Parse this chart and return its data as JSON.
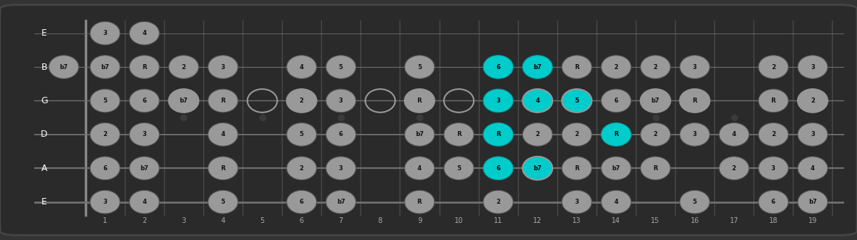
{
  "bg_color": "#333333",
  "fretboard_color": "#1c1c1c",
  "fret_color": "#4a4a4a",
  "string_color": "#707070",
  "dot_color_normal": "#999999",
  "dot_color_highlight": "#00cccc",
  "text_color_normal": "#111111",
  "text_color_highlight": "#000000",
  "string_label_color": "#ffffff",
  "fret_label_color": "#aaaaaa",
  "strings": [
    "E",
    "B",
    "G",
    "D",
    "A",
    "E"
  ],
  "string_y": [
    5,
    4,
    3,
    2,
    1,
    0
  ],
  "num_frets": 19,
  "notes": [
    {
      "fret": 1,
      "str": 5,
      "label": "3",
      "hl": false
    },
    {
      "fret": 2,
      "str": 5,
      "label": "4",
      "hl": false
    },
    {
      "fret": 1,
      "str": 4,
      "label": "b7",
      "hl": false
    },
    {
      "fret": 2,
      "str": 4,
      "label": "R",
      "hl": false
    },
    {
      "fret": 3,
      "str": 4,
      "label": "2",
      "hl": false
    },
    {
      "fret": 4,
      "str": 4,
      "label": "3",
      "hl": false
    },
    {
      "fret": 6,
      "str": 4,
      "label": "4",
      "hl": false
    },
    {
      "fret": 7,
      "str": 4,
      "label": "5",
      "hl": false
    },
    {
      "fret": 9,
      "str": 4,
      "label": "5",
      "hl": false
    },
    {
      "fret": 11,
      "str": 4,
      "label": "6",
      "hl": true
    },
    {
      "fret": 12,
      "str": 4,
      "label": "b7",
      "hl": true
    },
    {
      "fret": 13,
      "str": 4,
      "label": "R",
      "hl": false
    },
    {
      "fret": 14,
      "str": 4,
      "label": "2",
      "hl": false
    },
    {
      "fret": 15,
      "str": 4,
      "label": "2",
      "hl": false
    },
    {
      "fret": 16,
      "str": 4,
      "label": "3",
      "hl": false
    },
    {
      "fret": 18,
      "str": 4,
      "label": "2",
      "hl": false
    },
    {
      "fret": 19,
      "str": 4,
      "label": "3",
      "hl": false
    },
    {
      "fret": 1,
      "str": 3,
      "label": "5",
      "hl": false
    },
    {
      "fret": 2,
      "str": 3,
      "label": "6",
      "hl": false
    },
    {
      "fret": 3,
      "str": 3,
      "label": "b7",
      "hl": false
    },
    {
      "fret": 4,
      "str": 3,
      "label": "R",
      "hl": false
    },
    {
      "fret": 6,
      "str": 3,
      "label": "2",
      "hl": false
    },
    {
      "fret": 7,
      "str": 3,
      "label": "3",
      "hl": false
    },
    {
      "fret": 9,
      "str": 3,
      "label": "R",
      "hl": false
    },
    {
      "fret": 11,
      "str": 3,
      "label": "3",
      "hl": true
    },
    {
      "fret": 12,
      "str": 3,
      "label": "4",
      "hl": true
    },
    {
      "fret": 13,
      "str": 3,
      "label": "5",
      "hl": true
    },
    {
      "fret": 14,
      "str": 3,
      "label": "6",
      "hl": false
    },
    {
      "fret": 15,
      "str": 3,
      "label": "b7",
      "hl": false
    },
    {
      "fret": 16,
      "str": 3,
      "label": "R",
      "hl": false
    },
    {
      "fret": 18,
      "str": 3,
      "label": "R",
      "hl": false
    },
    {
      "fret": 19,
      "str": 3,
      "label": "2",
      "hl": false
    },
    {
      "fret": 1,
      "str": 2,
      "label": "2",
      "hl": false
    },
    {
      "fret": 2,
      "str": 2,
      "label": "3",
      "hl": false
    },
    {
      "fret": 4,
      "str": 2,
      "label": "4",
      "hl": false
    },
    {
      "fret": 6,
      "str": 2,
      "label": "5",
      "hl": false
    },
    {
      "fret": 7,
      "str": 2,
      "label": "6",
      "hl": false
    },
    {
      "fret": 9,
      "str": 2,
      "label": "b7",
      "hl": false
    },
    {
      "fret": 10,
      "str": 2,
      "label": "R",
      "hl": false
    },
    {
      "fret": 11,
      "str": 2,
      "label": "R",
      "hl": true
    },
    {
      "fret": 12,
      "str": 2,
      "label": "2",
      "hl": false
    },
    {
      "fret": 13,
      "str": 2,
      "label": "2",
      "hl": false
    },
    {
      "fret": 14,
      "str": 2,
      "label": "R",
      "hl": true
    },
    {
      "fret": 15,
      "str": 2,
      "label": "2",
      "hl": false
    },
    {
      "fret": 16,
      "str": 2,
      "label": "3",
      "hl": false
    },
    {
      "fret": 17,
      "str": 2,
      "label": "4",
      "hl": false
    },
    {
      "fret": 18,
      "str": 2,
      "label": "2",
      "hl": false
    },
    {
      "fret": 19,
      "str": 2,
      "label": "3",
      "hl": false
    },
    {
      "fret": 1,
      "str": 1,
      "label": "6",
      "hl": false
    },
    {
      "fret": 2,
      "str": 1,
      "label": "b7",
      "hl": false
    },
    {
      "fret": 4,
      "str": 1,
      "label": "R",
      "hl": false
    },
    {
      "fret": 6,
      "str": 1,
      "label": "2",
      "hl": false
    },
    {
      "fret": 7,
      "str": 1,
      "label": "3",
      "hl": false
    },
    {
      "fret": 9,
      "str": 1,
      "label": "4",
      "hl": false
    },
    {
      "fret": 10,
      "str": 1,
      "label": "5",
      "hl": false
    },
    {
      "fret": 11,
      "str": 1,
      "label": "6",
      "hl": true
    },
    {
      "fret": 12,
      "str": 1,
      "label": "b7",
      "hl": true
    },
    {
      "fret": 13,
      "str": 1,
      "label": "R",
      "hl": false
    },
    {
      "fret": 14,
      "str": 1,
      "label": "b7",
      "hl": false
    },
    {
      "fret": 15,
      "str": 1,
      "label": "R",
      "hl": false
    },
    {
      "fret": 17,
      "str": 1,
      "label": "2",
      "hl": false
    },
    {
      "fret": 18,
      "str": 1,
      "label": "3",
      "hl": false
    },
    {
      "fret": 19,
      "str": 1,
      "label": "4",
      "hl": false
    },
    {
      "fret": 1,
      "str": 0,
      "label": "3",
      "hl": false
    },
    {
      "fret": 2,
      "str": 0,
      "label": "4",
      "hl": false
    },
    {
      "fret": 4,
      "str": 0,
      "label": "5",
      "hl": false
    },
    {
      "fret": 6,
      "str": 0,
      "label": "6",
      "hl": false
    },
    {
      "fret": 7,
      "str": 0,
      "label": "b7",
      "hl": false
    },
    {
      "fret": 9,
      "str": 0,
      "label": "R",
      "hl": false
    },
    {
      "fret": 11,
      "str": 0,
      "label": "2",
      "hl": false
    },
    {
      "fret": 13,
      "str": 0,
      "label": "3",
      "hl": false
    },
    {
      "fret": 14,
      "str": 0,
      "label": "4",
      "hl": false
    },
    {
      "fret": 16,
      "str": 0,
      "label": "5",
      "hl": false
    },
    {
      "fret": 18,
      "str": 0,
      "label": "6",
      "hl": false
    },
    {
      "fret": 19,
      "str": 0,
      "label": "b7",
      "hl": false
    }
  ],
  "open_notes": [
    {
      "str": 4,
      "label": "b7"
    }
  ],
  "open_circles": [
    {
      "fret": 3,
      "str": 3
    },
    {
      "fret": 5,
      "str": 3
    },
    {
      "fret": 6,
      "str": 3
    },
    {
      "fret": 8,
      "str": 3
    },
    {
      "fret": 9,
      "str": 3
    },
    {
      "fret": 12,
      "str": 3
    },
    {
      "fret": 13,
      "str": 3
    },
    {
      "fret": 15,
      "str": 3
    },
    {
      "fret": 16,
      "str": 3
    },
    {
      "fret": 19,
      "str": 3
    },
    {
      "fret": 10,
      "str": 3
    },
    {
      "fret": 12,
      "str": 1
    }
  ],
  "string_names": [
    "E",
    "B",
    "G",
    "D",
    "A",
    "E"
  ],
  "string_indices": [
    5,
    4,
    3,
    2,
    1,
    0
  ]
}
